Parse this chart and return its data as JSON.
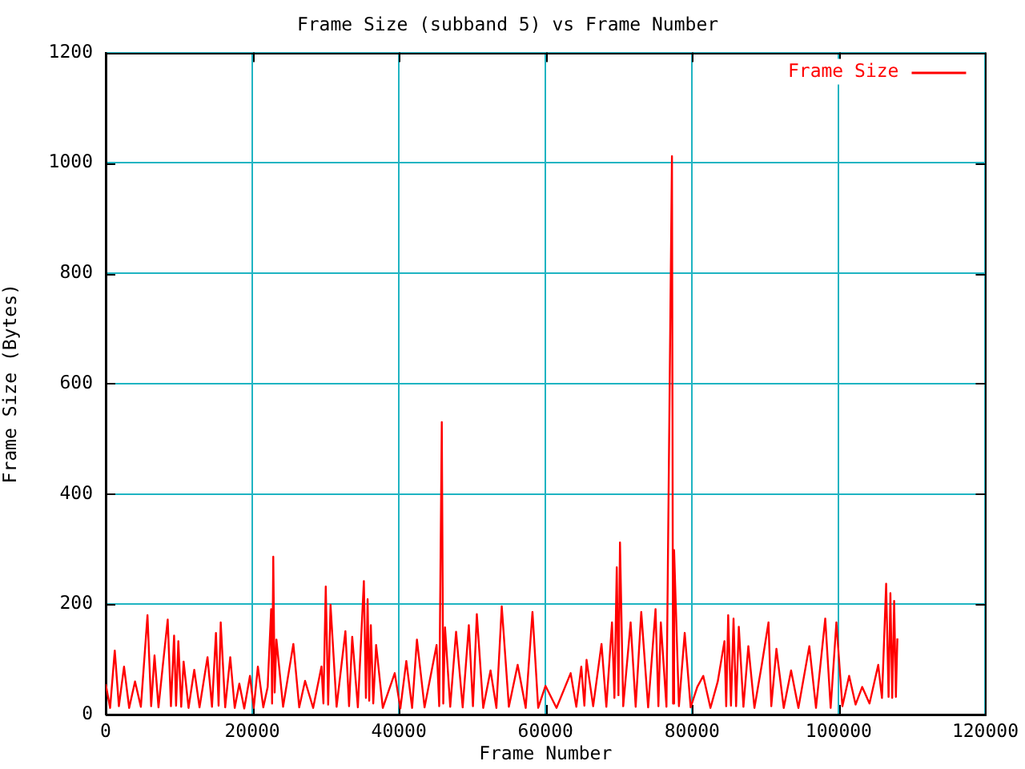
{
  "chart_data": {
    "type": "line",
    "title": "Frame Size (subband 5) vs Frame Number",
    "xlabel": "Frame Number",
    "ylabel": "Frame Size (Bytes)",
    "x": [
      0,
      600,
      1237,
      1800,
      2500,
      3200,
      4000,
      4800,
      5700,
      6200,
      6660,
      7200,
      7800,
      8460,
      8900,
      9330,
      9600,
      9910,
      10300,
      10630,
      11300,
      12080,
      12800,
      13890,
      14500,
      15040,
      15400,
      15690,
      16300,
      16990,
      17600,
      18230,
      18900,
      19680,
      20200,
      20760,
      21500,
      22100,
      22570,
      22700,
      22860,
      23050,
      23290,
      24200,
      25600,
      26400,
      27200,
      28300,
      29440,
      29700,
      30020,
      30350,
      30670,
      31500,
      32700,
      33200,
      33630,
      34400,
      35220,
      35500,
      35730,
      35950,
      36170,
      36500,
      36890,
      37800,
      39430,
      40200,
      41010,
      41800,
      42460,
      43500,
      45140,
      45500,
      45850,
      46050,
      46290,
      47000,
      47800,
      48700,
      49540,
      50100,
      50630,
      51500,
      52500,
      53300,
      54030,
      55000,
      56200,
      57300,
      58220,
      59000,
      60000,
      61500,
      63430,
      64200,
      64880,
      65300,
      65600,
      66500,
      67640,
      68300,
      69070,
      69400,
      69720,
      69950,
      70160,
      70600,
      71610,
      72300,
      73060,
      74000,
      75010,
      75400,
      75730,
      76500,
      77250,
      77400,
      77540,
      78200,
      78990,
      79800,
      80700,
      81520,
      82500,
      83500,
      84410,
      84650,
      84920,
      85300,
      85650,
      86000,
      86370,
      87000,
      87670,
      88500,
      89500,
      90420,
      90800,
      91500,
      92500,
      93500,
      94500,
      95990,
      96900,
      98160,
      98900,
      99680,
      100500,
      101420,
      102300,
      103200,
      104200,
      105390,
      105900,
      106470,
      106800,
      107050,
      107300,
      107560,
      107800,
      108000
    ],
    "series": [
      {
        "name": "Frame Size",
        "color": "#ff0000",
        "values": [
          55,
          12,
          116,
          15,
          87,
          12,
          60,
          14,
          180,
          15,
          107,
          13,
          90,
          172,
          15,
          143,
          16,
          133,
          14,
          96,
          12,
          81,
          13,
          104,
          14,
          148,
          16,
          167,
          13,
          104,
          12,
          56,
          11,
          70,
          12,
          87,
          13,
          50,
          191,
          20,
          286,
          40,
          136,
          14,
          128,
          13,
          61,
          12,
          87,
          20,
          232,
          18,
          199,
          14,
          151,
          15,
          141,
          13,
          242,
          30,
          209,
          25,
          162,
          20,
          126,
          12,
          75,
          11,
          97,
          12,
          136,
          13,
          126,
          15,
          530,
          20,
          158,
          14,
          150,
          13,
          162,
          15,
          182,
          12,
          80,
          12,
          196,
          14,
          90,
          12,
          186,
          12,
          52,
          12,
          75,
          14,
          87,
          16,
          99,
          15,
          128,
          14,
          167,
          30,
          267,
          35,
          312,
          15,
          167,
          14,
          186,
          13,
          191,
          15,
          167,
          14,
          1012,
          20,
          298,
          15,
          148,
          13,
          50,
          70,
          12,
          60,
          133,
          15,
          180,
          16,
          174,
          15,
          159,
          14,
          124,
          12,
          90,
          167,
          15,
          119,
          12,
          80,
          12,
          124,
          12,
          174,
          12,
          167,
          15,
          70,
          18,
          50,
          20,
          90,
          30,
          237,
          32,
          220,
          30,
          206,
          32,
          138
        ]
      }
    ],
    "xlim": [
      0,
      120000
    ],
    "ylim": [
      0,
      1200
    ],
    "xticks": [
      0,
      20000,
      40000,
      60000,
      80000,
      100000,
      120000
    ],
    "yticks": [
      0,
      200,
      400,
      600,
      800,
      1000,
      1200
    ],
    "grid": true,
    "legend": "top right",
    "marker": "none",
    "line_style": "solid"
  }
}
